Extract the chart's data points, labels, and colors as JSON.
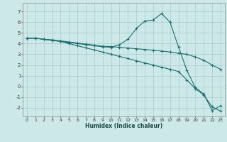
{
  "xlabel": "Humidex (Indice chaleur)",
  "xlim": [
    -0.5,
    23.5
  ],
  "ylim": [
    -2.8,
    7.8
  ],
  "yticks": [
    -2,
    -1,
    0,
    1,
    2,
    3,
    4,
    5,
    6,
    7
  ],
  "xticks": [
    0,
    1,
    2,
    3,
    4,
    5,
    6,
    7,
    8,
    9,
    10,
    11,
    12,
    13,
    14,
    15,
    16,
    17,
    18,
    19,
    20,
    21,
    22,
    23
  ],
  "bg_color": "#cce8e8",
  "grid_color": "#aacccc",
  "line_color": "#1a7070",
  "series1_x": [
    0,
    1,
    2,
    3,
    4,
    5,
    6,
    7,
    8,
    9,
    10,
    11,
    12,
    13,
    14,
    15,
    16,
    17,
    18,
    19,
    20,
    21,
    22,
    23
  ],
  "series1_y": [
    4.5,
    4.5,
    4.4,
    4.3,
    4.2,
    4.1,
    4.0,
    3.9,
    3.8,
    3.7,
    3.65,
    3.9,
    4.4,
    5.4,
    6.1,
    6.2,
    6.8,
    6.0,
    3.7,
    1.5,
    -0.1,
    -0.7,
    -2.25,
    -1.8
  ],
  "series2_x": [
    0,
    1,
    2,
    3,
    4,
    5,
    6,
    7,
    8,
    9,
    10,
    11,
    12,
    13,
    14,
    15,
    16,
    17,
    18,
    19,
    20,
    21,
    22,
    23
  ],
  "series2_y": [
    4.5,
    4.5,
    4.4,
    4.3,
    4.2,
    4.0,
    3.8,
    3.6,
    3.4,
    3.2,
    3.0,
    2.8,
    2.6,
    2.4,
    2.2,
    2.0,
    1.8,
    1.6,
    1.4,
    0.6,
    -0.2,
    -0.8,
    -1.9,
    -2.3
  ],
  "series3_x": [
    0,
    1,
    2,
    3,
    4,
    5,
    6,
    7,
    8,
    9,
    10,
    11,
    12,
    13,
    14,
    15,
    16,
    17,
    18,
    19,
    20,
    21,
    22,
    23
  ],
  "series3_y": [
    4.5,
    4.5,
    4.4,
    4.35,
    4.25,
    4.15,
    4.05,
    3.95,
    3.85,
    3.75,
    3.72,
    3.65,
    3.58,
    3.52,
    3.45,
    3.38,
    3.3,
    3.22,
    3.1,
    3.0,
    2.75,
    2.45,
    2.0,
    1.6
  ]
}
